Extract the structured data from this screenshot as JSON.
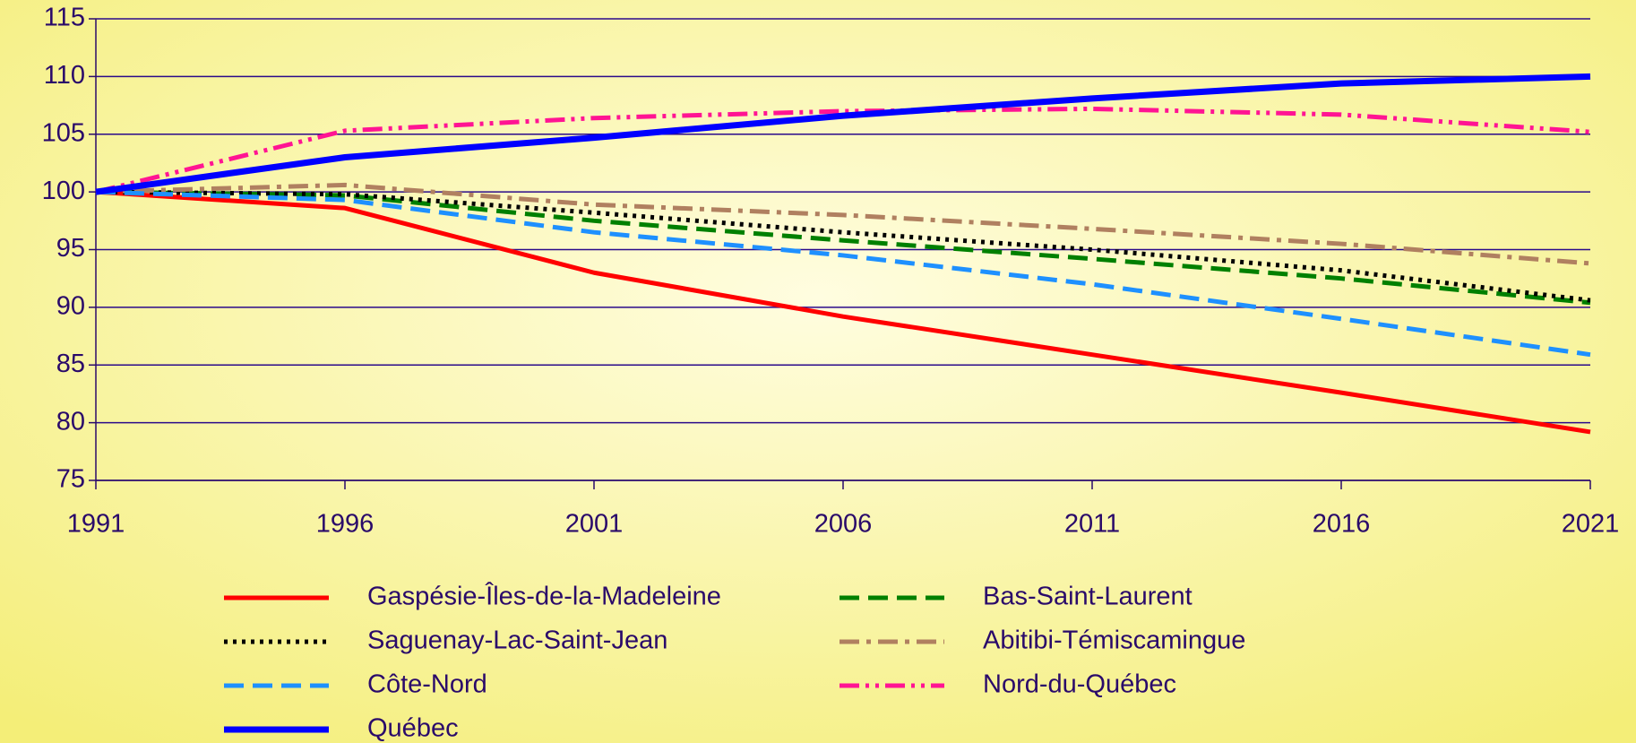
{
  "chart_data": {
    "type": "line",
    "x": [
      1991,
      1996,
      2001,
      2006,
      2011,
      2016,
      2021
    ],
    "series": [
      {
        "name": "Gaspésie-Îles-de-la-Madeleine",
        "color": "#ff0000",
        "dash": "solid",
        "values": [
          100,
          98.6,
          93,
          89.2,
          85.9,
          82.6,
          79.2
        ]
      },
      {
        "name": "Bas-Saint-Laurent",
        "color": "#008000",
        "dash": "dash",
        "values": [
          100,
          99.7,
          97.5,
          95.8,
          94.2,
          92.5,
          90.4
        ]
      },
      {
        "name": "Saguenay-Lac-Saint-Jean",
        "color": "#000000",
        "dash": "dot",
        "values": [
          100,
          99.8,
          98.2,
          96.5,
          95,
          93.2,
          90.6
        ]
      },
      {
        "name": "Abitibi-Témiscamingue",
        "color": "#b08060",
        "dash": "dashdot",
        "values": [
          100,
          100.6,
          98.9,
          98,
          96.8,
          95.5,
          93.8
        ]
      },
      {
        "name": "Côte-Nord",
        "color": "#1e90ff",
        "dash": "dash",
        "values": [
          100,
          99.3,
          96.5,
          94.5,
          92,
          89,
          85.9
        ]
      },
      {
        "name": "Nord-du-Québec",
        "color": "#ff1493",
        "dash": "dashdotdot",
        "values": [
          100,
          105.3,
          106.4,
          107,
          107.2,
          106.7,
          105.2
        ]
      },
      {
        "name": "Québec",
        "color": "#0000ff",
        "dash": "solid",
        "width": "thick",
        "values": [
          100,
          103,
          104.7,
          106.6,
          108.1,
          109.4,
          110
        ]
      }
    ],
    "xlim": [
      1991,
      2021
    ],
    "xticks": [
      1991,
      1996,
      2001,
      2006,
      2011,
      2016,
      2021
    ],
    "ylim": [
      75,
      115
    ],
    "yticks": [
      75,
      80,
      85,
      90,
      95,
      100,
      105,
      110,
      115
    ],
    "grid": true,
    "legend": "bottom"
  }
}
